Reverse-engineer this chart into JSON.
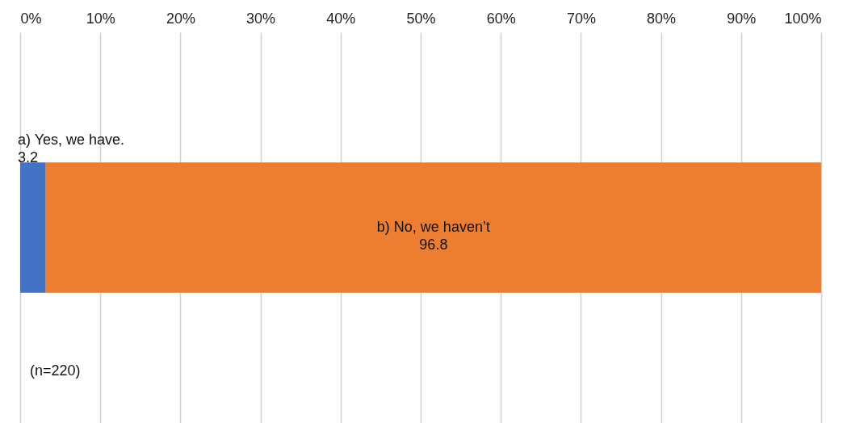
{
  "chart_data": {
    "type": "bar",
    "orientation": "horizontal",
    "stacked": true,
    "categories": [
      null
    ],
    "series": [
      {
        "name": "a) Yes, we have.",
        "color": "#4472c4",
        "values": [
          3.2
        ]
      },
      {
        "name": "b) No, we haven’t",
        "color": "#ed7d31",
        "values": [
          96.8
        ]
      }
    ],
    "xlim": [
      0,
      100
    ],
    "xticks": [
      {
        "value": 0,
        "label": "0%"
      },
      {
        "value": 10,
        "label": "10%"
      },
      {
        "value": 20,
        "label": "20%"
      },
      {
        "value": 30,
        "label": "30%"
      },
      {
        "value": 40,
        "label": "40%"
      },
      {
        "value": 50,
        "label": "50%"
      },
      {
        "value": 60,
        "label": "60%"
      },
      {
        "value": 70,
        "label": "70%"
      },
      {
        "value": 80,
        "label": "80%"
      },
      {
        "value": 90,
        "label": "90%"
      },
      {
        "value": 100,
        "label": "100%"
      }
    ],
    "grid": "x",
    "data_labels": true,
    "annotations": [
      "(n=220)"
    ]
  }
}
